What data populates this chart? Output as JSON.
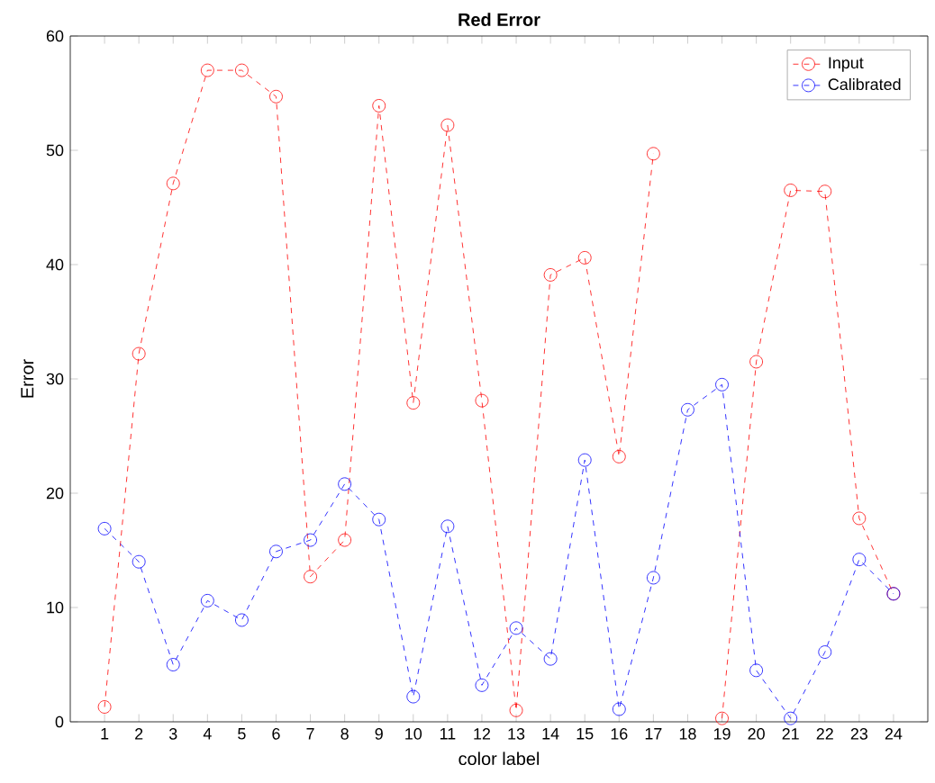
{
  "chart_data": {
    "type": "line",
    "title": "Red Error",
    "xlabel": "color label",
    "ylabel": "Error",
    "x": [
      1,
      2,
      3,
      4,
      5,
      6,
      7,
      8,
      9,
      10,
      11,
      12,
      13,
      14,
      15,
      16,
      17,
      18,
      19,
      20,
      21,
      22,
      23,
      24
    ],
    "series": [
      {
        "name": "Input",
        "color": "#ff0000",
        "values": [
          1.3,
          32.2,
          47.1,
          57.0,
          57.0,
          54.7,
          12.7,
          15.9,
          53.9,
          27.9,
          52.2,
          28.1,
          1.0,
          39.1,
          40.6,
          23.2,
          49.7,
          null,
          0.3,
          31.5,
          46.5,
          46.4,
          17.8,
          11.2
        ]
      },
      {
        "name": "Calibrated",
        "color": "#0000ff",
        "values": [
          16.9,
          14.0,
          5.0,
          10.6,
          8.9,
          14.9,
          15.9,
          20.8,
          17.7,
          2.2,
          17.1,
          3.2,
          8.2,
          5.5,
          22.9,
          1.1,
          12.6,
          27.3,
          29.5,
          4.5,
          0.3,
          6.1,
          14.2,
          11.2
        ]
      }
    ],
    "xlim": [
      0,
      25
    ],
    "ylim": [
      0,
      60
    ],
    "xticks": [
      1,
      2,
      3,
      4,
      5,
      6,
      7,
      8,
      9,
      10,
      11,
      12,
      13,
      14,
      15,
      16,
      17,
      18,
      19,
      20,
      21,
      22,
      23,
      24
    ],
    "yticks": [
      0,
      10,
      20,
      30,
      40,
      50,
      60
    ],
    "marker": "circle",
    "line_style": "dashed",
    "grid": false,
    "legend": "top right"
  }
}
